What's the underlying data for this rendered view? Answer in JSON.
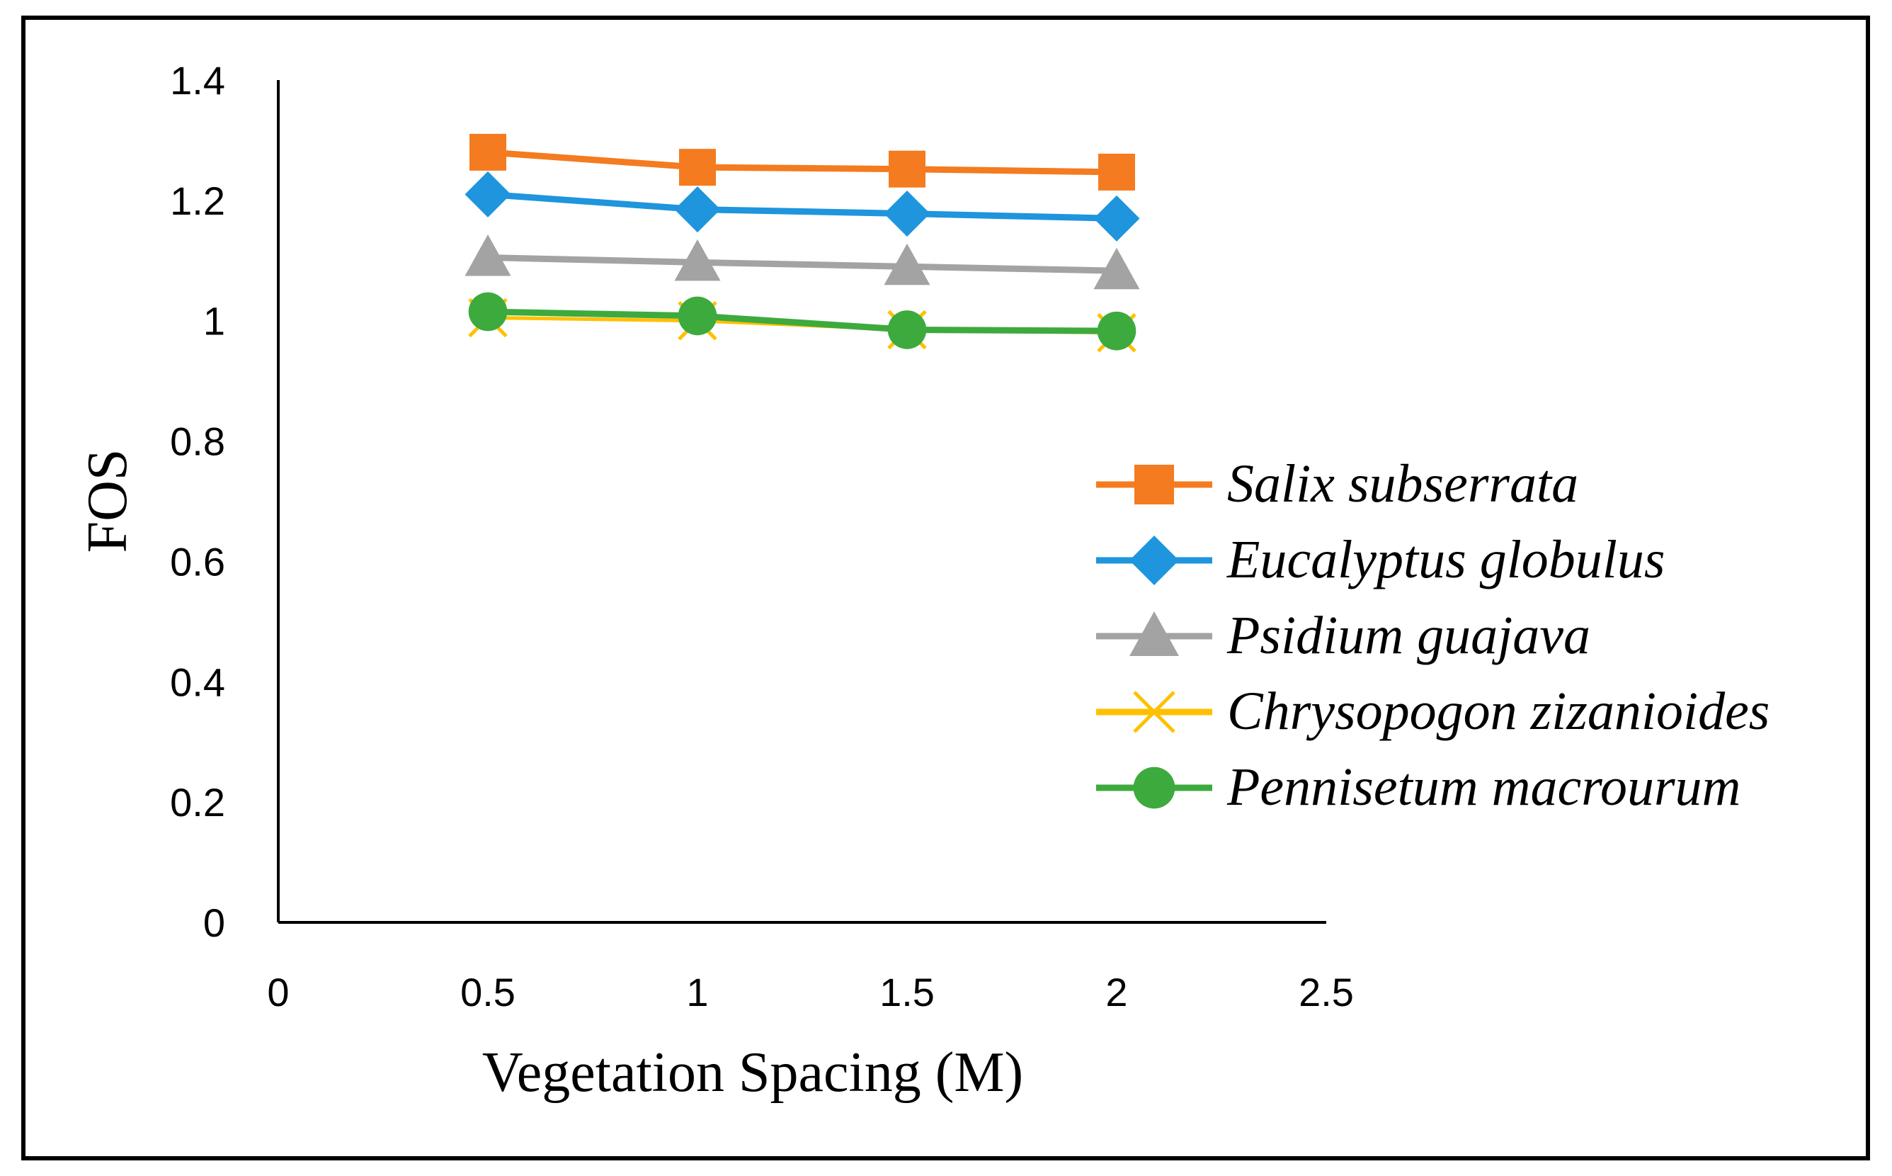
{
  "chart_data": {
    "type": "line",
    "title": "",
    "xlabel": "Vegetation Spacing (M)",
    "ylabel": "FOS",
    "xlim": [
      0,
      2.5
    ],
    "ylim": [
      0,
      1.4
    ],
    "xticks": [
      0,
      0.5,
      1,
      1.5,
      2,
      2.5
    ],
    "xtick_labels": [
      "0",
      "0.5",
      "1",
      "1.5",
      "2",
      "2.5"
    ],
    "yticks": [
      0,
      0.2,
      0.4,
      0.6,
      0.8,
      1,
      1.2,
      1.4
    ],
    "ytick_labels": [
      "0",
      "0.2",
      "0.4",
      "0.6",
      "0.8",
      "1",
      "1.2",
      "1.4"
    ],
    "grid": false,
    "legend_position": "right",
    "x": [
      0.5,
      1,
      1.5,
      2
    ],
    "series": [
      {
        "name": "Salix subserrata",
        "color": "#F47B20",
        "marker": "square",
        "values": [
          1.28,
          1.255,
          1.252,
          1.247
        ]
      },
      {
        "name": "Eucalyptus globulus",
        "color": "#1E95DC",
        "marker": "diamond",
        "values": [
          1.21,
          1.185,
          1.178,
          1.17
        ]
      },
      {
        "name": "Psidium guajava",
        "color": "#A3A3A3",
        "marker": "triangle",
        "values": [
          1.105,
          1.097,
          1.09,
          1.083
        ]
      },
      {
        "name": "Chrysopogon zizanioides",
        "color": "#FFC000",
        "marker": "x",
        "values": [
          1.005,
          1.0,
          0.985,
          0.98
        ]
      },
      {
        "name": "Pennisetum macrourum",
        "color": "#3DAA3D",
        "marker": "circle",
        "values": [
          1.015,
          1.008,
          0.985,
          0.983
        ]
      }
    ]
  }
}
